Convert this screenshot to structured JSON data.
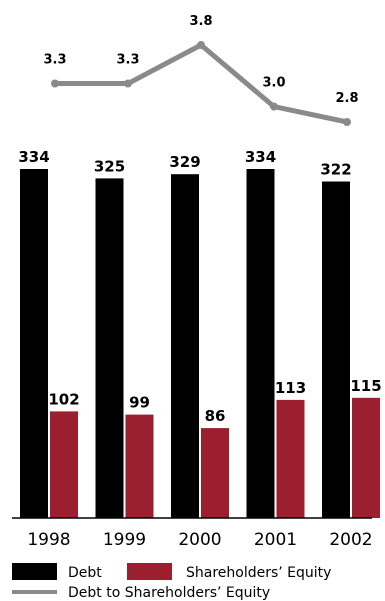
{
  "chart_data": {
    "type": "bar",
    "categories": [
      "1998",
      "1999",
      "2000",
      "2001",
      "2002"
    ],
    "series": [
      {
        "name": "Debt",
        "values": [
          334,
          325,
          329,
          334,
          322
        ],
        "color": "#000000"
      },
      {
        "name": "Shareholders’ Equity",
        "values": [
          102,
          99,
          86,
          113,
          115
        ],
        "color": "#9b1f2e"
      }
    ],
    "line_series": {
      "name": "Debt to Shareholders’ Equity",
      "values": [
        3.3,
        3.3,
        3.8,
        3.0,
        2.8
      ],
      "labels": [
        "3.3",
        "3.3",
        "3.8",
        "3.0",
        "2.8"
      ],
      "color": "#8a8a8a"
    },
    "ylim": [
      0,
      334
    ],
    "line_ylim": [
      2.8,
      3.8
    ],
    "grid": false,
    "legend": "bottom",
    "title": "",
    "xlabel": "",
    "ylabel": ""
  }
}
